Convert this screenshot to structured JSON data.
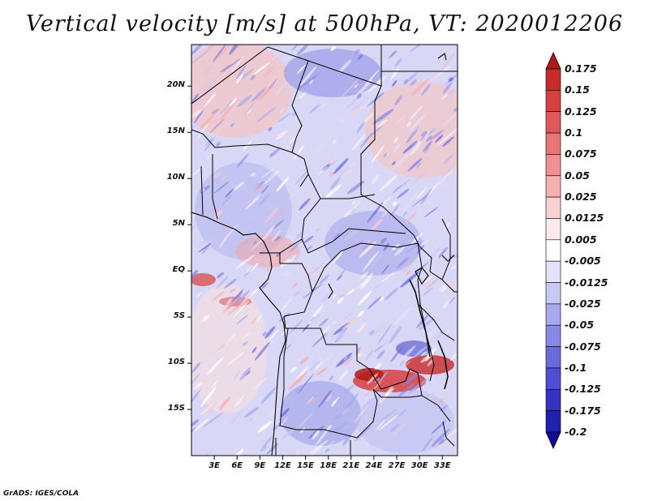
{
  "title": "Vertical velocity [m/s] at 500hPa, VT: 2020012206",
  "credit": "GrADS: IGES/COLA",
  "map": {
    "variable": "Vertical velocity",
    "units": "m/s",
    "level": "500hPa",
    "valid_time": "2020012206",
    "lat_range": [
      -20,
      24.5
    ],
    "lon_range": [
      0,
      35
    ],
    "lat_ticks": [
      "20N",
      "15N",
      "10N",
      "5N",
      "EQ",
      "5S",
      "10S",
      "15S"
    ],
    "lon_ticks": [
      "3E",
      "6E",
      "9E",
      "12E",
      "15E",
      "18E",
      "21E",
      "24E",
      "27E",
      "30E",
      "33E"
    ]
  },
  "colorbar": {
    "labels": [
      "0.175",
      "0.15",
      "0.125",
      "0.1",
      "0.075",
      "0.05",
      "0.025",
      "0.0125",
      "0.005",
      "-0.005",
      "-0.0125",
      "-0.025",
      "-0.05",
      "-0.075",
      "-0.1",
      "-0.125",
      "-0.175",
      "-0.2"
    ],
    "colors": [
      "#b01a1a",
      "#c82a2a",
      "#d84040",
      "#e05858",
      "#e87474",
      "#f09090",
      "#f6b0b0",
      "#fad0d0",
      "#fdeaea",
      "#ffffff",
      "#e2e2fb",
      "#c8c8f4",
      "#a8a8ee",
      "#8888e6",
      "#6a6ade",
      "#4e4ed2",
      "#3434c2",
      "#2020b0",
      "#140a96"
    ]
  }
}
